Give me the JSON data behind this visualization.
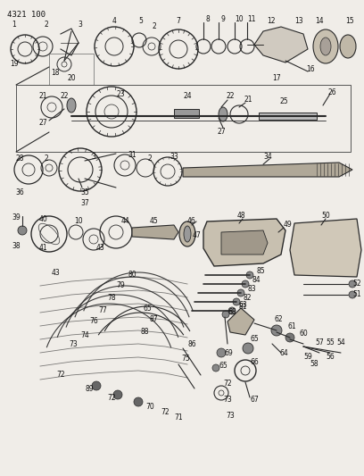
{
  "bg_color": "#f0ede8",
  "figsize": [
    4.08,
    5.33
  ],
  "dpi": 100,
  "corner_text": "4321 100",
  "line_color": "#2a2a2a",
  "label_color": "#111111",
  "font_size": 5.5
}
